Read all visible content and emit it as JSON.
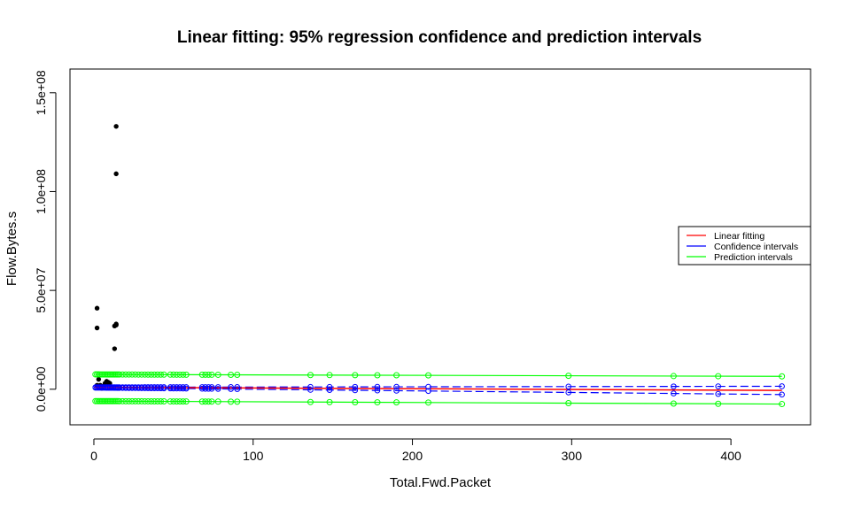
{
  "chart_data": {
    "type": "scatter",
    "title": "Linear fitting: 95% regression confidence and prediction intervals",
    "xlabel": "Total.Fwd.Packet",
    "ylabel": "Flow.Bytes.s",
    "xlim": [
      -15,
      450
    ],
    "ylim": [
      -18000000,
      162000000
    ],
    "x_ticks": [
      0,
      100,
      200,
      300,
      400
    ],
    "x_tick_labels": [
      "0",
      "100",
      "200",
      "300",
      "400"
    ],
    "y_ticks": [
      0,
      50000000,
      100000000,
      150000000
    ],
    "y_tick_labels": [
      "0.0e+00",
      "5.0e+07",
      "1.0e+08",
      "1.5e+08"
    ],
    "grid": false,
    "legend_position": "right",
    "colors": {
      "observed": "#000000",
      "fit": "#ff0000",
      "confidence": "#0000ff",
      "prediction": "#00ff00",
      "text": "#000000"
    },
    "legend": [
      {
        "label": "Linear fitting",
        "color": "#ff0000"
      },
      {
        "label": "Confidence intervals",
        "color": "#0000ff"
      },
      {
        "label": "Prediction intervals",
        "color": "#00ff00"
      }
    ],
    "series": [
      {
        "name": "observed",
        "kind": "points",
        "x": [
          2,
          2,
          2,
          3,
          3,
          4,
          5,
          6,
          7,
          8,
          9,
          10,
          11,
          13,
          13,
          14,
          14,
          14,
          14
        ],
        "y": [
          41000000,
          31000000,
          2000000,
          5000000,
          1000000,
          2000000,
          500000,
          1500000,
          3000000,
          4000000,
          3500000,
          3000000,
          1000000,
          32000000,
          20500000,
          133000000,
          109000000,
          32500000,
          33000000
        ]
      },
      {
        "name": "Linear fitting",
        "kind": "line",
        "x": [
          0,
          432
        ],
        "y": [
          1000000,
          -600000
        ]
      },
      {
        "name": "Confidence intervals",
        "kind": "band",
        "x": [
          1,
          432
        ],
        "upper": [
          1000000,
          1500000
        ],
        "lower": [
          800000,
          -2700000
        ]
      },
      {
        "name": "Prediction intervals",
        "kind": "band",
        "x": [
          1,
          432
        ],
        "upper": [
          7500000,
          6500000
        ],
        "lower": [
          -6000000,
          -7500000
        ]
      }
    ],
    "marker_x": [
      1,
      2,
      3,
      4,
      5,
      6,
      7,
      8,
      9,
      10,
      11,
      12,
      13,
      14,
      15,
      16,
      18,
      20,
      22,
      24,
      26,
      28,
      30,
      32,
      34,
      36,
      38,
      40,
      42,
      44,
      48,
      50,
      52,
      54,
      56,
      58,
      68,
      70,
      72,
      74,
      78,
      86,
      90,
      136,
      148,
      164,
      178,
      190,
      210,
      298,
      364,
      392,
      432
    ]
  }
}
